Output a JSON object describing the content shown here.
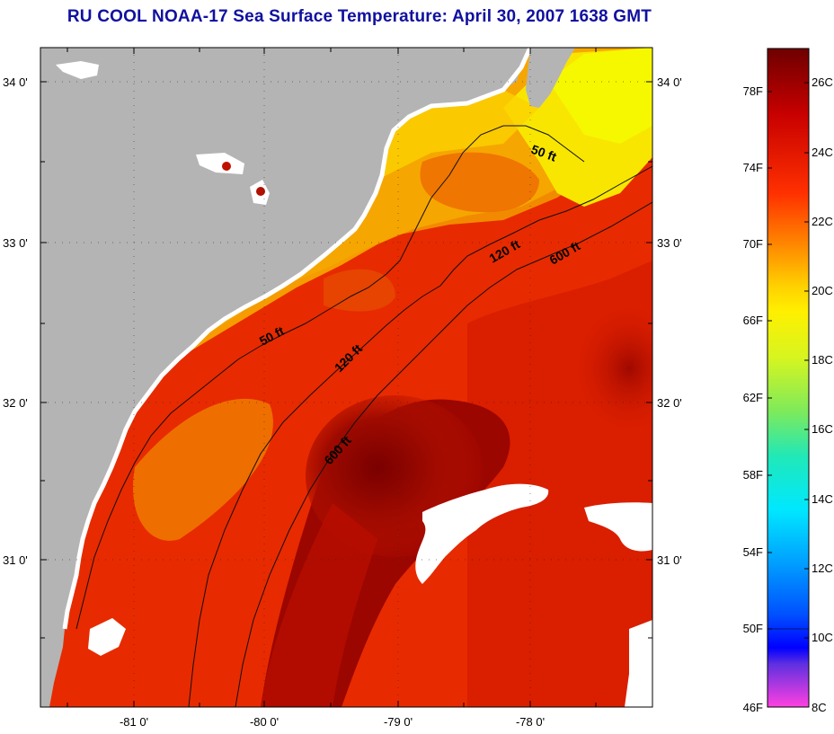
{
  "title": "RU COOL  NOAA-17  Sea Surface Temperature:  April 30, 2007 1638 GMT",
  "lat_labels": [
    "34 0'",
    "33 0'",
    "32 0'",
    "31 0'"
  ],
  "lon_labels": [
    "-81 0'",
    "-80 0'",
    "-79 0'",
    "-78 0'"
  ],
  "contour_labels": {
    "c50_north": "50 ft",
    "c50_south": "50 ft",
    "c120_north": "120 ft",
    "c120_south": "120 ft",
    "c600_north": "600 ft",
    "c600_south": "600 ft"
  },
  "colorbar": {
    "fahrenheit": [
      "78F",
      "74F",
      "70F",
      "66F",
      "62F",
      "58F",
      "54F",
      "50F",
      "46F"
    ],
    "celsius": [
      "26C",
      "24C",
      "22C",
      "20C",
      "18C",
      "16C",
      "14C",
      "12C",
      "10C",
      "8C"
    ]
  },
  "colors": {
    "title": "#1010a0",
    "land": "#b4b4b4",
    "warm_core": "#8b0000",
    "ocean_red": "#e82a00",
    "shelf_orange": "#f49a00",
    "cool_yellow": "#f8f400",
    "cloud": "#ffffff"
  }
}
